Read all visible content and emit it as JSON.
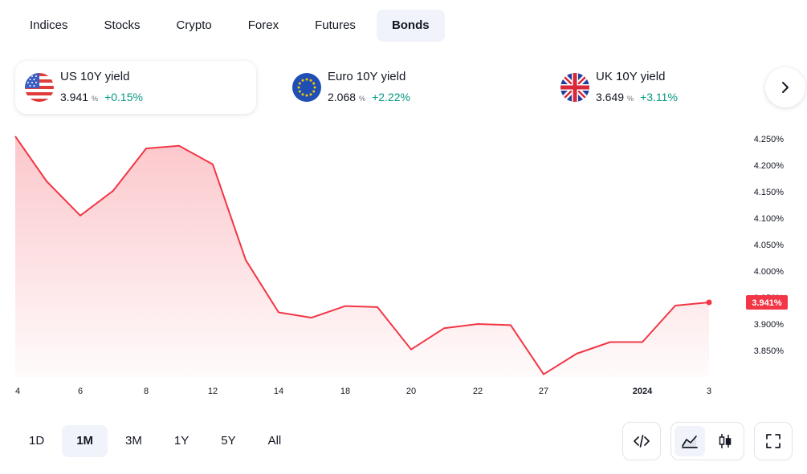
{
  "tabs": [
    {
      "label": "Indices",
      "active": false
    },
    {
      "label": "Stocks",
      "active": false
    },
    {
      "label": "Crypto",
      "active": false
    },
    {
      "label": "Forex",
      "active": false
    },
    {
      "label": "Futures",
      "active": false
    },
    {
      "label": "Bonds",
      "active": true
    }
  ],
  "cards": [
    {
      "name": "US 10Y yield",
      "value": "3.941",
      "unit": "%",
      "change": "+0.15%",
      "flag": "us-flag-icon",
      "active": true
    },
    {
      "name": "Euro 10Y yield",
      "value": "2.068",
      "unit": "%",
      "change": "+2.22%",
      "flag": "eu-flag-icon",
      "active": false
    },
    {
      "name": "UK 10Y yield",
      "value": "3.649",
      "unit": "%",
      "change": "+3.11%",
      "flag": "uk-flag-icon",
      "active": false
    }
  ],
  "colors": {
    "line": "#f23645",
    "positive": "#089981",
    "active_bg": "#f0f3fa"
  },
  "chart_data": {
    "type": "area",
    "x": [
      "Dec 4",
      "Dec 5",
      "Dec 6",
      "Dec 7",
      "Dec 8",
      "Dec 11",
      "Dec 12",
      "Dec 13",
      "Dec 14",
      "Dec 15",
      "Dec 18",
      "Dec 19",
      "Dec 20",
      "Dec 21",
      "Dec 22",
      "Dec 26",
      "Dec 27",
      "Dec 28",
      "Dec 29",
      "Jan 1",
      "Jan 2",
      "Jan 3"
    ],
    "values": [
      4.255,
      4.17,
      4.105,
      4.152,
      4.232,
      4.237,
      4.202,
      4.021,
      3.922,
      3.912,
      3.934,
      3.932,
      3.852,
      3.892,
      3.9,
      3.898,
      3.805,
      3.844,
      3.866,
      3.866,
      3.935,
      3.941
    ],
    "x_tick_labels": [
      "4",
      "6",
      "8",
      "12",
      "14",
      "18",
      "20",
      "22",
      "27",
      "2024",
      "3"
    ],
    "y_tick_labels": [
      "4.250%",
      "4.200%",
      "4.150%",
      "4.100%",
      "4.050%",
      "4.000%",
      "3.950%",
      "3.900%",
      "3.850%"
    ],
    "ylim": [
      3.8,
      4.27
    ],
    "last_value_label": "3.941%",
    "grid": false
  },
  "ranges": [
    {
      "label": "1D",
      "active": false
    },
    {
      "label": "1M",
      "active": true
    },
    {
      "label": "3M",
      "active": false
    },
    {
      "label": "1Y",
      "active": false
    },
    {
      "label": "5Y",
      "active": false
    },
    {
      "label": "All",
      "active": false
    }
  ],
  "tools": {
    "embed_icon": "code-icon",
    "area_icon": "area-chart-icon",
    "candle_icon": "candlestick-icon",
    "fullscreen_icon": "fullscreen-icon"
  }
}
